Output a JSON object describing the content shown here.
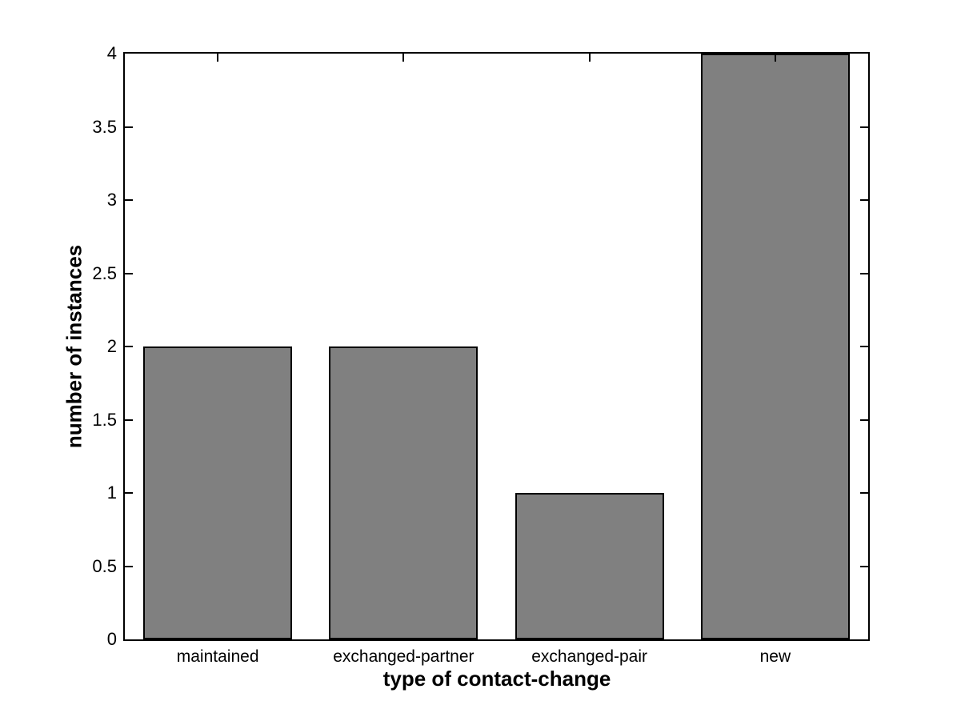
{
  "figure": {
    "background": "#ffffff",
    "axis_color": "#000000",
    "bar_fill": "#808080",
    "bar_edge": "#000000",
    "text_color": "#000000"
  },
  "chart_data": {
    "type": "bar",
    "categories": [
      "maintained",
      "exchanged-partner",
      "exchanged-pair",
      "new"
    ],
    "values": [
      2,
      2,
      1,
      4
    ],
    "xlabel": "type of contact-change",
    "ylabel": "number of instances",
    "ylim": [
      0,
      4
    ],
    "ytick_step": 0.5,
    "ytick_labels": [
      "0",
      "0.5",
      "1",
      "1.5",
      "2",
      "2.5",
      "3",
      "3.5",
      "4"
    ],
    "bar_width_fraction": 0.8,
    "grid": false,
    "legend": "none",
    "box": true,
    "tick_direction": "in"
  }
}
